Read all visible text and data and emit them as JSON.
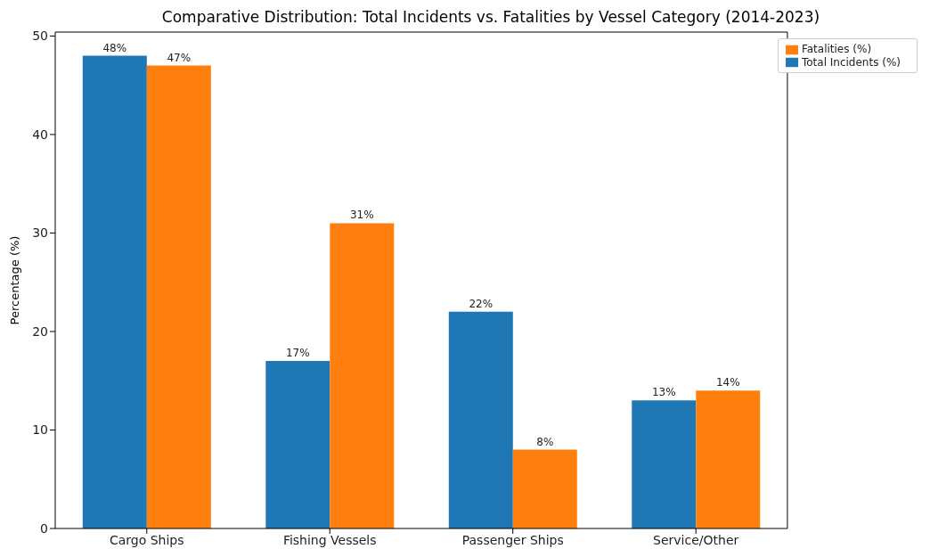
{
  "chart_data": {
    "type": "bar",
    "title": "Comparative Distribution: Total Incidents vs. Fatalities by Vessel Category (2014-2023)",
    "ylabel": "Percentage (%)",
    "categories": [
      "Cargo Ships",
      "Fishing Vessels",
      "Passenger Ships",
      "Service/Other"
    ],
    "series": [
      {
        "name": "Total Incidents (%)",
        "color": "#1f77b4",
        "values": [
          48,
          17,
          22,
          13
        ],
        "value_labels": [
          "48%",
          "17%",
          "22%",
          "13%"
        ]
      },
      {
        "name": "Fatalities (%)",
        "color": "#ff7f0e",
        "values": [
          47,
          31,
          8,
          14
        ],
        "value_labels": [
          "47%",
          "31%",
          "8%",
          "14%"
        ]
      }
    ],
    "ylim": [
      0,
      50.4
    ],
    "yticks": [
      0,
      10,
      20,
      30,
      40,
      50
    ],
    "grid": false,
    "legend": "top right"
  }
}
